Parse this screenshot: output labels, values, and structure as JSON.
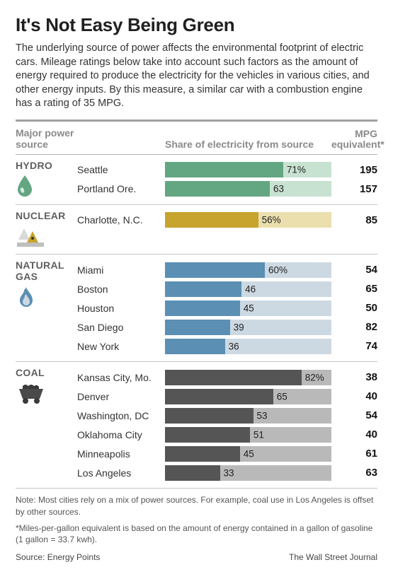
{
  "title": "It's Not Easy Being Green",
  "intro": "The underlying source of power affects the environmental footprint of electric cars. Mileage ratings below take into account such factors as the amount of energy required to produce the electricity for the vehicles in various cities, and other energy inputs. By this measure, a similar car with a combustion engine has a rating of 35 MPG.",
  "headers": {
    "source": "Major power source",
    "share": "Share of electricity from source",
    "mpg_line1": "MPG",
    "mpg_line2": "equivalent*"
  },
  "bar_domain_max": 100,
  "groups": [
    {
      "label": "HYDRO",
      "icon": "drop",
      "fg": "#63a682",
      "bg": "#c8e2d1",
      "rows": [
        {
          "city": "Seattle",
          "pct": 71,
          "show_pct_suffix": true,
          "mpg": "195"
        },
        {
          "city": "Portland Ore.",
          "pct": 63,
          "show_pct_suffix": false,
          "mpg": "157"
        }
      ]
    },
    {
      "label": "NUCLEAR",
      "icon": "nuclear",
      "fg": "#c7a42d",
      "bg": "#ebdfae",
      "rows": [
        {
          "city": "Charlotte, N.C.",
          "pct": 56,
          "show_pct_suffix": true,
          "mpg": "85"
        }
      ]
    },
    {
      "label": "NATURAL GAS",
      "icon": "flame",
      "fg": "#5b8fb4",
      "bg": "#cdd9e2",
      "rows": [
        {
          "city": "Miami",
          "pct": 60,
          "show_pct_suffix": true,
          "mpg": "54"
        },
        {
          "city": "Boston",
          "pct": 46,
          "show_pct_suffix": false,
          "mpg": "65"
        },
        {
          "city": "Houston",
          "pct": 45,
          "show_pct_suffix": false,
          "mpg": "50"
        },
        {
          "city": "San Diego",
          "pct": 39,
          "show_pct_suffix": false,
          "mpg": "82"
        },
        {
          "city": "New York",
          "pct": 36,
          "show_pct_suffix": false,
          "mpg": "74"
        }
      ]
    },
    {
      "label": "COAL",
      "icon": "cart",
      "fg": "#555555",
      "bg": "#b9b9b9",
      "rows": [
        {
          "city": "Kansas City, Mo.",
          "pct": 82,
          "show_pct_suffix": true,
          "mpg": "38"
        },
        {
          "city": "Denver",
          "pct": 65,
          "show_pct_suffix": false,
          "mpg": "40"
        },
        {
          "city": "Washington, DC",
          "pct": 53,
          "show_pct_suffix": false,
          "mpg": "54"
        },
        {
          "city": "Oklahoma City",
          "pct": 51,
          "show_pct_suffix": false,
          "mpg": "40"
        },
        {
          "city": "Minneapolis",
          "pct": 45,
          "show_pct_suffix": false,
          "mpg": "61"
        },
        {
          "city": "Los Angeles",
          "pct": 33,
          "show_pct_suffix": false,
          "mpg": "63"
        }
      ]
    }
  ],
  "footnote1": "Note: Most cities rely on a mix of power sources. For example, coal use in Los Angeles is offset by other sources.",
  "footnote2": "*Miles-per-gallon equivalent is based on the amount of energy contained in a gallon of gasoline  (1 gallon = 33.7 kwh).",
  "source": "Source: Energy Points",
  "publisher": "The Wall Street Journal"
}
